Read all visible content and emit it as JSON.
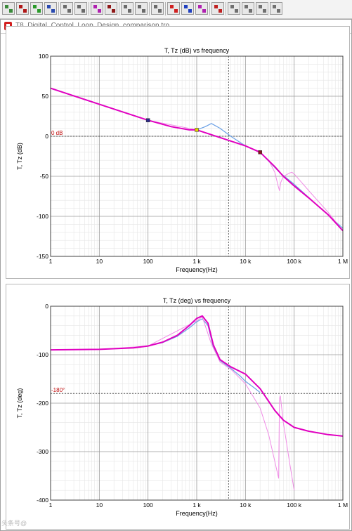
{
  "toolbar": {
    "buttons": [
      "tree-view",
      "tree-add",
      "tree-green",
      "tree-blue",
      "tree-left",
      "tree-right",
      "tree-magenta",
      "tree-dark",
      "tree-back",
      "tree-fwd",
      "tree-plain",
      "dc-bias-button",
      "dc-voltage-button",
      "time-voltage-button",
      "waveform-button",
      "print-button",
      "grid-button",
      "probe-button",
      "settings-button"
    ]
  },
  "window": {
    "title": "T8_Digital_Control_Loop_Design_comparison.tro"
  },
  "watermark": "头条号@",
  "chart_data": [
    {
      "type": "line",
      "title": "T, Tz (dB) vs frequency",
      "xlabel": "Frequency(Hz)",
      "ylabel": "T, Tz (dB)",
      "xscale": "log",
      "xlim": [
        1,
        1000000
      ],
      "ylim": [
        -150,
        100
      ],
      "xticks": [
        1,
        10,
        100,
        1000,
        10000,
        100000,
        1000000
      ],
      "xtick_labels": [
        "1",
        "10",
        "100",
        "1 k",
        "10 k",
        "100 k",
        "1 M"
      ],
      "yticks": [
        100,
        50,
        0,
        -50,
        -100,
        -150
      ],
      "ytick_labels": [
        "100",
        "50",
        "0",
        "-50",
        "-100",
        "-150"
      ],
      "grid": true,
      "reference_line": {
        "y": 0,
        "label": "0 dB"
      },
      "cursor_x": 4500,
      "markers": [
        {
          "x": 100,
          "y": 20,
          "color": "#2a2a8a"
        },
        {
          "x": 1000,
          "y": 8,
          "color": "#e0d000"
        },
        {
          "x": 20000,
          "y": -20,
          "color": "#8a1020"
        }
      ],
      "series": [
        {
          "color": "#6aa0e6",
          "width": 1.2,
          "x": [
            1,
            10,
            100,
            300,
            700,
            1000,
            1500,
            2000,
            3000,
            5000,
            10000,
            20000,
            50000,
            100000,
            1000000
          ],
          "y": [
            60,
            40,
            20,
            12,
            8,
            8,
            12,
            16,
            10,
            0,
            -12,
            -20,
            -45,
            -60,
            -115
          ]
        },
        {
          "color": "#f08ce6",
          "width": 1,
          "x": [
            1,
            10,
            100,
            1000,
            10000,
            20000,
            30000,
            40000,
            47000,
            50000,
            53000,
            60000,
            70000,
            80000,
            90000,
            100000,
            130000,
            200000,
            500000,
            1000000
          ],
          "y": [
            60,
            40,
            20,
            8,
            -12,
            -20,
            -30,
            -45,
            -62,
            -68,
            -58,
            -50,
            -48,
            -46,
            -45,
            -47,
            -55,
            -68,
            -95,
            -118
          ]
        },
        {
          "color": "#e000c0",
          "width": 2,
          "x": [
            1,
            10,
            100,
            300,
            700,
            1000,
            10000,
            20000,
            40000,
            60000,
            100000,
            200000,
            500000,
            1000000
          ],
          "y": [
            60,
            40,
            20,
            12,
            8,
            8,
            -12,
            -20,
            -38,
            -50,
            -62,
            -77,
            -98,
            -118
          ]
        }
      ]
    },
    {
      "type": "line",
      "title": "T, Tz (deg) vs frequency",
      "xlabel": "Frequency(Hz)",
      "ylabel": "T, Tz (deg)",
      "xscale": "log",
      "xlim": [
        1,
        1000000
      ],
      "ylim": [
        -400,
        0
      ],
      "xticks": [
        1,
        10,
        100,
        1000,
        10000,
        100000,
        1000000
      ],
      "xtick_labels": [
        "1",
        "10",
        "100",
        "1 k",
        "10 k",
        "100 k",
        "1 M"
      ],
      "yticks": [
        0,
        -100,
        -200,
        -300,
        -400
      ],
      "ytick_labels": [
        "0",
        "-100",
        "-200",
        "-300",
        "-400"
      ],
      "grid": true,
      "reference_line": {
        "y": -180,
        "label": "-180°"
      },
      "cursor_x": 4500,
      "markers": [],
      "series": [
        {
          "color": "#6aa0e6",
          "width": 1.2,
          "x": [
            1,
            10,
            50,
            100,
            200,
            400,
            700,
            1000,
            1300,
            1700,
            2200,
            3000,
            5000,
            8000,
            10000,
            15000,
            20000
          ],
          "y": [
            -90,
            -89,
            -86,
            -82,
            -75,
            -62,
            -45,
            -32,
            -26,
            -40,
            -85,
            -112,
            -128,
            -145,
            -155,
            -168,
            -178
          ]
        },
        {
          "color": "#f08ce6",
          "width": 1,
          "x": [
            1,
            10,
            100,
            1000,
            1300,
            2000,
            3000,
            5000,
            10000,
            20000,
            30000,
            40000,
            48000,
            50000,
            52000,
            60000,
            80000,
            100000
          ],
          "y": [
            -90,
            -89,
            -82,
            -30,
            -22,
            -78,
            -115,
            -130,
            -160,
            -210,
            -265,
            -320,
            -355,
            -190,
            -185,
            -240,
            -320,
            -380
          ]
        },
        {
          "color": "#e000c0",
          "width": 2,
          "x": [
            1,
            10,
            50,
            100,
            200,
            400,
            700,
            1000,
            1300,
            1700,
            2200,
            3000,
            5000,
            10000,
            20000,
            40000,
            60000,
            100000,
            200000,
            500000,
            1000000
          ],
          "y": [
            -90,
            -89,
            -86,
            -82,
            -74,
            -60,
            -40,
            -25,
            -20,
            -35,
            -80,
            -110,
            -125,
            -140,
            -170,
            -215,
            -235,
            -250,
            -258,
            -265,
            -268
          ]
        }
      ]
    }
  ]
}
